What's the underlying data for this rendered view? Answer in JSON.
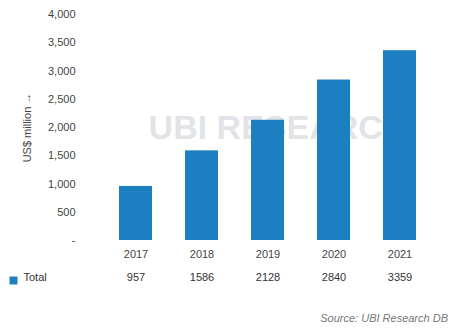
{
  "chart_data": {
    "type": "bar",
    "y_label": "US$ million",
    "categories": [
      "2017",
      "2018",
      "2019",
      "2020",
      "2021"
    ],
    "series": [
      {
        "name": "Total",
        "color": "#1b7fc1",
        "values": [
          957,
          1586,
          2128,
          2840,
          3359
        ]
      }
    ],
    "ylim": [
      0,
      4000
    ],
    "yticks": [
      {
        "value": 0,
        "label": "-"
      },
      500,
      {
        "value": 1000,
        "label": "1,000"
      },
      {
        "value": 1500,
        "label": "1,500"
      },
      {
        "value": 2000,
        "label": "2,000"
      },
      {
        "value": 2500,
        "label": "2,500"
      },
      {
        "value": 3000,
        "label": "3,000"
      },
      {
        "value": 3500,
        "label": "3,500"
      },
      {
        "value": 4000,
        "label": "4,000"
      }
    ],
    "grid": false,
    "data_labels": true,
    "watermark": "UBI RESEARCH",
    "source": "Source: UBI Research DB"
  }
}
